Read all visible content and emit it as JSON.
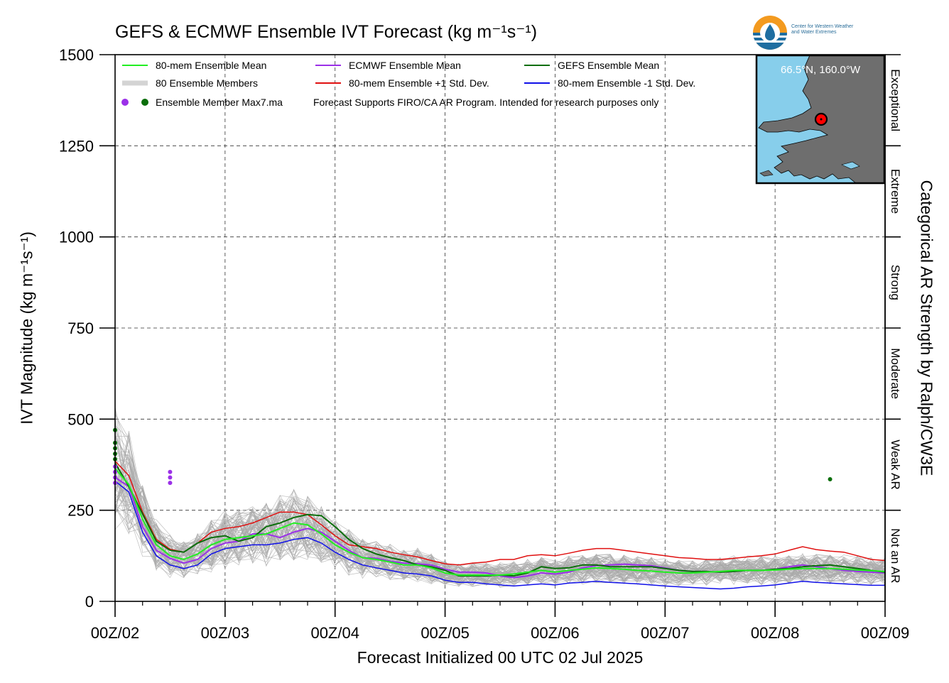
{
  "title": "GEFS & ECMWF Ensemble IVT Forecast (kg m⁻¹s⁻¹)",
  "logo_text": [
    "Center for Western Weather",
    "and Water Extremes"
  ],
  "map_inset": {
    "label": "66.5°N, 160.0°W",
    "water_color": "#87ceeb",
    "land_color": "#6e6e6e",
    "marker_color": "#ff0000"
  },
  "chart_data": {
    "type": "line",
    "xlabel": "Forecast Initialized 00 UTC 02 Jul 2025",
    "ylabel": "IVT Magnitude (kg m⁻¹s⁻¹)",
    "right_axis_label": "Categorical AR Strength by Ralph/CW3E",
    "x_ticks": [
      "00Z/02",
      "00Z/03",
      "00Z/04",
      "00Z/05",
      "00Z/06",
      "00Z/07",
      "00Z/08",
      "00Z/09"
    ],
    "xlim": [
      0,
      168
    ],
    "x_unit": "forecast hours",
    "y_ticks": [
      0,
      250,
      500,
      750,
      1000,
      1250,
      1500
    ],
    "ylim": [
      0,
      1500
    ],
    "grid": true,
    "categories": [
      {
        "label": "Not an AR",
        "range": [
          0,
          250
        ]
      },
      {
        "label": "Weak AR",
        "range": [
          250,
          500
        ]
      },
      {
        "label": "Moderate",
        "range": [
          500,
          750
        ]
      },
      {
        "label": "Strong",
        "range": [
          750,
          1000
        ]
      },
      {
        "label": "Extreme",
        "range": [
          1000,
          1250
        ]
      },
      {
        "label": "Exceptional",
        "range": [
          1250,
          1500
        ]
      }
    ],
    "legend": {
      "placement": "top-left",
      "items": [
        {
          "label": "80-mem Ensemble Mean",
          "color": "#22ee22"
        },
        {
          "label": "ECMWF Ensemble Mean",
          "color": "#9b30e8"
        },
        {
          "label": "GEFS Ensemble Mean",
          "color": "#0b6e0b"
        },
        {
          "label": "80 Ensemble Members",
          "color": "#aaaaaa"
        },
        {
          "label": "80-mem Ensemble +1 Std. Dev.",
          "color": "#e01010"
        },
        {
          "label": "80-mem Ensemble -1 Std. Dev.",
          "color": "#1010e8"
        },
        {
          "label": "Ensemble Member Max7.ma",
          "color": "#9b30e8"
        }
      ],
      "note": "Forecast Supports FIRO/CA AR Program. Intended for research purposes only"
    },
    "x": [
      0,
      3,
      6,
      9,
      12,
      15,
      18,
      21,
      24,
      27,
      30,
      33,
      36,
      39,
      42,
      45,
      48,
      51,
      54,
      57,
      60,
      63,
      66,
      69,
      72,
      75,
      78,
      81,
      84,
      87,
      90,
      93,
      96,
      99,
      102,
      105,
      108,
      111,
      114,
      117,
      120,
      123,
      126,
      129,
      132,
      135,
      138,
      141,
      144,
      147,
      150,
      153,
      156,
      159,
      162,
      165,
      168
    ],
    "series": [
      {
        "name": "80-mem Ensemble Mean",
        "color": "#22ee22",
        "width": 2,
        "values": [
          365,
          320,
          225,
          155,
          125,
          115,
          130,
          155,
          170,
          175,
          180,
          185,
          200,
          215,
          210,
          185,
          155,
          135,
          120,
          115,
          108,
          100,
          100,
          92,
          78,
          72,
          72,
          72,
          72,
          75,
          80,
          85,
          80,
          85,
          88,
          92,
          90,
          88,
          85,
          83,
          80,
          78,
          78,
          80,
          82,
          85,
          85,
          85,
          86,
          88,
          90,
          90,
          90,
          88,
          86,
          84,
          82
        ]
      },
      {
        "name": "ECMWF Ensemble Mean",
        "color": "#9b30e8",
        "width": 2,
        "values": [
          340,
          315,
          205,
          140,
          118,
          105,
          115,
          145,
          160,
          165,
          185,
          185,
          175,
          190,
          200,
          190,
          165,
          140,
          120,
          118,
          110,
          105,
          103,
          100,
          88,
          80,
          80,
          78,
          70,
          65,
          70,
          78,
          75,
          80,
          92,
          98,
          100,
          102,
          100,
          98,
          92,
          85,
          82,
          82,
          80,
          82,
          85,
          85,
          88,
          95,
          100,
          95,
          90,
          85,
          82,
          80,
          78
        ]
      },
      {
        "name": "GEFS Ensemble Mean",
        "color": "#0b6e0b",
        "width": 2,
        "values": [
          380,
          315,
          240,
          165,
          140,
          135,
          160,
          175,
          180,
          165,
          175,
          205,
          215,
          230,
          238,
          235,
          205,
          170,
          145,
          130,
          120,
          112,
          100,
          95,
          85,
          70,
          70,
          70,
          72,
          70,
          78,
          95,
          90,
          92,
          100,
          100,
          95,
          95,
          95,
          95,
          90,
          85,
          82,
          82,
          80,
          82,
          85,
          85,
          88,
          90,
          95,
          98,
          100,
          95,
          90,
          85,
          80
        ]
      },
      {
        "name": "80-mem Ensemble +1 Std. Dev.",
        "color": "#e01010",
        "width": 1.5,
        "values": [
          385,
          345,
          245,
          170,
          143,
          135,
          160,
          190,
          200,
          205,
          215,
          230,
          245,
          245,
          238,
          210,
          180,
          155,
          150,
          145,
          135,
          128,
          122,
          112,
          103,
          100,
          105,
          108,
          115,
          115,
          125,
          128,
          125,
          132,
          140,
          145,
          145,
          140,
          135,
          130,
          125,
          120,
          118,
          115,
          115,
          118,
          122,
          125,
          130,
          140,
          150,
          142,
          138,
          135,
          125,
          115,
          112
        ]
      },
      {
        "name": "80-mem Ensemble -1 Std. Dev.",
        "color": "#1010e8",
        "width": 1.5,
        "values": [
          330,
          300,
          190,
          125,
          100,
          90,
          100,
          130,
          145,
          150,
          155,
          155,
          160,
          170,
          175,
          160,
          135,
          115,
          100,
          92,
          85,
          78,
          75,
          70,
          58,
          52,
          52,
          48,
          45,
          42,
          45,
          48,
          45,
          50,
          52,
          55,
          52,
          50,
          48,
          45,
          42,
          40,
          38,
          36,
          34,
          36,
          40,
          42,
          45,
          50,
          55,
          52,
          50,
          48,
          46,
          44,
          44
        ]
      }
    ],
    "members": {
      "count": 80,
      "color": "#aaaaaa"
    },
    "max_markers": [
      {
        "x": 0,
        "y": 470,
        "color": "#0b6e0b"
      },
      {
        "x": 0,
        "y": 435,
        "color": "#0b6e0b"
      },
      {
        "x": 0,
        "y": 420,
        "color": "#0b6e0b"
      },
      {
        "x": 0,
        "y": 405,
        "color": "#0b6e0b"
      },
      {
        "x": 0,
        "y": 390,
        "color": "#0b6e0b"
      },
      {
        "x": 0,
        "y": 370,
        "color": "#9b30e8"
      },
      {
        "x": 0,
        "y": 355,
        "color": "#9b30e8"
      },
      {
        "x": 0,
        "y": 340,
        "color": "#9b30e8"
      },
      {
        "x": 0,
        "y": 325,
        "color": "#9b30e8"
      },
      {
        "x": 12,
        "y": 355,
        "color": "#9b30e8"
      },
      {
        "x": 12,
        "y": 340,
        "color": "#9b30e8"
      },
      {
        "x": 12,
        "y": 325,
        "color": "#9b30e8"
      },
      {
        "x": 156,
        "y": 335,
        "color": "#0b6e0b"
      }
    ]
  }
}
